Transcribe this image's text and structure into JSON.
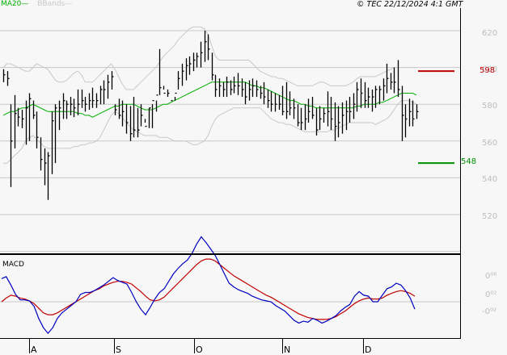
{
  "header": {
    "legend_ma": "MA20",
    "legend_bbands": "BBands",
    "copyright": "© TEC 22/12/2024 4:1 GMT"
  },
  "price_axis": {
    "labels": [
      "620",
      "600",
      "580",
      "560",
      "540",
      "520"
    ]
  },
  "macd_panel": {
    "title": "MACD",
    "axis_labels": [
      "0.06",
      "0.02",
      "-0.02"
    ],
    "axis_labels_display": [
      "0⁰⁶",
      "0⁰²",
      "-0⁰²"
    ]
  },
  "x_axis": {
    "labels": [
      "A",
      "S",
      "O",
      "N",
      "D"
    ]
  },
  "levels": {
    "resistance": {
      "value": "598",
      "color": "#c00000"
    },
    "support": {
      "value": "548",
      "color": "#009000"
    }
  },
  "colors": {
    "background": "#f7f7f7",
    "grid": "#c8c8c8",
    "bars": "#000000",
    "ma20": "#00b000",
    "bbands": "#c8c8c8",
    "macd": "#0000c0",
    "signal": "#c00000"
  },
  "chart_data": [
    {
      "type": "line",
      "title": "Price (OHLC bars) with MA20 and Bollinger Bands",
      "xlabel": "",
      "ylabel": "",
      "ylim": [
        500,
        625
      ],
      "grid": true,
      "legend_position": "top-left",
      "legend": [
        "MA20",
        "BBands"
      ],
      "x_tick_labels": [
        "A",
        "S",
        "O",
        "N",
        "D"
      ],
      "y_tick_labels": [
        620,
        600,
        580,
        560,
        540,
        520
      ],
      "annotations": [
        {
          "label": "598",
          "type": "horizontal-level",
          "value": 598,
          "color": "#c00000"
        },
        {
          "label": "548",
          "type": "horizontal-level",
          "value": 548,
          "color": "#009000"
        }
      ],
      "series": [
        {
          "name": "High",
          "values": [
            599,
            598,
            580,
            585,
            578,
            577,
            582,
            586,
            582,
            576,
            562,
            556,
            554,
            576,
            580,
            582,
            586,
            582,
            584,
            583,
            588,
            588,
            584,
            586,
            589,
            586,
            590,
            593,
            596,
            598,
            580,
            583,
            582,
            580,
            579,
            584,
            578,
            580,
            570,
            567,
            567,
            576,
            610,
            590,
            588,
            580,
            582,
            598,
            602,
            605,
            606,
            608,
            608,
            614,
            620,
            618,
            608,
            596,
            594,
            592,
            595,
            593,
            595,
            597,
            594,
            592,
            593,
            594,
            593,
            590,
            592,
            588,
            587,
            586,
            585,
            590,
            592,
            587,
            583,
            580,
            578,
            580,
            583,
            584,
            578,
            579,
            578,
            587,
            584,
            581,
            579,
            581,
            582,
            584,
            586,
            592,
            594,
            592,
            589,
            588,
            590,
            590,
            594,
            602,
            597,
            600,
            604,
            590,
            580,
            583,
            582,
            580
          ]
        },
        {
          "name": "Low",
          "values": [
            592,
            590,
            535,
            556,
            568,
            567,
            558,
            560,
            572,
            556,
            544,
            536,
            528,
            542,
            548,
            566,
            572,
            572,
            574,
            573,
            574,
            578,
            576,
            577,
            578,
            578,
            580,
            580,
            583,
            588,
            574,
            572,
            568,
            564,
            560,
            562,
            562,
            568,
            572,
            578,
            580,
            582,
            585,
            588,
            584,
            580,
            584,
            588,
            590,
            593,
            596,
            598,
            600,
            600,
            603,
            604,
            593,
            584,
            584,
            584,
            584,
            585,
            586,
            585,
            584,
            580,
            582,
            584,
            584,
            583,
            580,
            578,
            576,
            576,
            577,
            574,
            572,
            574,
            572,
            568,
            566,
            566,
            570,
            572,
            563,
            566,
            570,
            568,
            566,
            560,
            562,
            564,
            566,
            570,
            572,
            576,
            578,
            578,
            578,
            576,
            578,
            580,
            582,
            586,
            588,
            586,
            584,
            560,
            562,
            568,
            568,
            572
          ]
        },
        {
          "name": "Close",
          "values": [
            596,
            594,
            560,
            575,
            573,
            572,
            578,
            583,
            574,
            562,
            550,
            548,
            552,
            571,
            578,
            578,
            582,
            580,
            580,
            578,
            580,
            582,
            580,
            582,
            582,
            582,
            588,
            588,
            592,
            595,
            577,
            574,
            576,
            570,
            564,
            566,
            566,
            574,
            568,
            578,
            582,
            585,
            589,
            586,
            586,
            582,
            586,
            594,
            598,
            601,
            602,
            604,
            606,
            608,
            614,
            610,
            596,
            588,
            590,
            588,
            592,
            588,
            590,
            590,
            588,
            584,
            588,
            590,
            588,
            586,
            584,
            582,
            580,
            580,
            580,
            576,
            576,
            578,
            578,
            570,
            570,
            572,
            576,
            574,
            566,
            572,
            575,
            576,
            572,
            568,
            570,
            574,
            576,
            576,
            580,
            588,
            586,
            582,
            584,
            584,
            588,
            588,
            590,
            594,
            592,
            592,
            588,
            574,
            572,
            576,
            572,
            576
          ]
        },
        {
          "name": "MA20",
          "values": [
            574,
            575,
            576,
            576,
            577,
            578,
            578,
            579,
            580,
            579,
            578,
            577,
            576,
            576,
            576,
            576,
            576,
            576,
            576,
            576,
            575,
            575,
            574,
            574,
            573,
            574,
            575,
            576,
            577,
            578,
            579,
            579,
            580,
            580,
            580,
            580,
            579,
            578,
            577,
            577,
            577,
            578,
            579,
            580,
            580,
            581,
            582,
            583,
            584,
            585,
            586,
            587,
            588,
            589,
            590,
            591,
            592,
            592,
            592,
            592,
            592,
            592,
            592,
            592,
            592,
            592,
            591,
            590,
            590,
            589,
            589,
            588,
            587,
            586,
            585,
            584,
            583,
            582,
            582,
            581,
            580,
            580,
            579,
            579,
            578,
            578,
            578,
            578,
            578,
            578,
            578,
            578,
            578,
            578,
            578,
            579,
            579,
            580,
            580,
            580,
            580,
            581,
            581,
            582,
            583,
            584,
            585,
            586,
            586,
            586,
            586,
            585
          ]
        },
        {
          "name": "BB_Upper",
          "values": [
            600,
            602,
            602,
            601,
            600,
            599,
            598,
            598,
            600,
            602,
            601,
            600,
            599,
            596,
            593,
            592,
            592,
            593,
            595,
            597,
            598,
            596,
            592,
            592,
            592,
            594,
            596,
            598,
            600,
            602,
            599,
            595,
            591,
            588,
            588,
            588,
            590,
            592,
            594,
            596,
            598,
            600,
            603,
            606,
            608,
            610,
            612,
            615,
            617,
            619,
            621,
            622,
            622,
            622,
            621,
            618,
            612,
            606,
            604,
            604,
            604,
            604,
            604,
            604,
            604,
            604,
            604,
            602,
            600,
            598,
            597,
            596,
            595,
            595,
            594,
            594,
            593,
            592,
            591,
            590,
            590,
            590,
            590,
            590,
            591,
            592,
            592,
            591,
            590,
            590,
            590,
            590,
            590,
            591,
            592,
            594,
            595,
            595,
            595,
            595,
            595,
            596,
            597,
            598,
            599,
            600,
            600,
            600,
            600,
            600,
            600,
            600
          ]
        },
        {
          "name": "BB_Lower",
          "values": [
            548,
            548,
            550,
            552,
            554,
            556,
            560,
            562,
            563,
            561,
            559,
            557,
            556,
            556,
            556,
            556,
            556,
            556,
            556,
            557,
            557,
            558,
            558,
            559,
            559,
            560,
            562,
            566,
            570,
            574,
            576,
            575,
            573,
            570,
            568,
            566,
            565,
            564,
            563,
            563,
            563,
            563,
            562,
            562,
            562,
            561,
            560,
            560,
            560,
            560,
            559,
            558,
            558,
            559,
            560,
            563,
            568,
            572,
            574,
            575,
            576,
            577,
            578,
            578,
            578,
            578,
            578,
            578,
            578,
            578,
            576,
            574,
            572,
            571,
            570,
            570,
            569,
            569,
            568,
            567,
            566,
            565,
            565,
            565,
            565,
            565,
            565,
            565,
            566,
            566,
            567,
            568,
            569,
            570,
            570,
            570,
            570,
            570,
            570,
            570,
            569,
            570,
            571,
            572,
            574,
            577,
            580,
            582,
            582,
            582,
            581,
            580
          ]
        }
      ]
    },
    {
      "type": "line",
      "title": "MACD",
      "xlabel": "",
      "ylabel": "",
      "ylim": [
        -0.05,
        0.09
      ],
      "grid": false,
      "x_tick_labels": [
        "A",
        "S",
        "O",
        "N",
        "D"
      ],
      "y_tick_labels": [
        0.06,
        0.02,
        -0.02
      ],
      "series": [
        {
          "name": "MACD",
          "color": "#0000c0",
          "values": [
            0.025,
            0.027,
            0.018,
            0.008,
            0.002,
            0.002,
            0.001,
            -0.005,
            -0.018,
            -0.028,
            -0.034,
            -0.028,
            -0.018,
            -0.012,
            -0.008,
            -0.004,
            0.0,
            0.008,
            0.01,
            0.01,
            0.012,
            0.015,
            0.018,
            0.022,
            0.026,
            0.023,
            0.021,
            0.019,
            0.01,
            0.0,
            -0.008,
            -0.014,
            -0.006,
            0.003,
            0.01,
            0.014,
            0.022,
            0.03,
            0.036,
            0.041,
            0.045,
            0.052,
            0.062,
            0.07,
            0.064,
            0.057,
            0.05,
            0.04,
            0.03,
            0.02,
            0.016,
            0.013,
            0.011,
            0.009,
            0.006,
            0.004,
            0.002,
            0.001,
            0.0,
            -0.004,
            -0.007,
            -0.01,
            -0.015,
            -0.02,
            -0.023,
            -0.021,
            -0.022,
            -0.018,
            -0.02,
            -0.023,
            -0.021,
            -0.018,
            -0.015,
            -0.01,
            -0.006,
            -0.003,
            0.006,
            0.011,
            0.007,
            0.006,
            0.0,
            0.0,
            0.007,
            0.014,
            0.016,
            0.02,
            0.018,
            0.012,
            0.004,
            -0.008
          ]
        },
        {
          "name": "Signal",
          "color": "#c00000",
          "values": [
            0.0,
            0.004,
            0.007,
            0.006,
            0.004,
            0.003,
            0.001,
            -0.002,
            -0.007,
            -0.012,
            -0.014,
            -0.014,
            -0.012,
            -0.009,
            -0.006,
            -0.003,
            0.0,
            0.003,
            0.006,
            0.009,
            0.012,
            0.014,
            0.017,
            0.019,
            0.021,
            0.022,
            0.022,
            0.021,
            0.019,
            0.015,
            0.011,
            0.006,
            0.002,
            0.001,
            0.002,
            0.005,
            0.01,
            0.015,
            0.02,
            0.025,
            0.03,
            0.035,
            0.04,
            0.044,
            0.046,
            0.046,
            0.044,
            0.04,
            0.036,
            0.032,
            0.028,
            0.025,
            0.022,
            0.019,
            0.016,
            0.013,
            0.01,
            0.007,
            0.005,
            0.002,
            -0.001,
            -0.004,
            -0.007,
            -0.01,
            -0.013,
            -0.015,
            -0.017,
            -0.018,
            -0.019,
            -0.019,
            -0.019,
            -0.018,
            -0.016,
            -0.013,
            -0.01,
            -0.006,
            -0.002,
            0.001,
            0.003,
            0.004,
            0.003,
            0.003,
            0.004,
            0.007,
            0.009,
            0.011,
            0.012,
            0.011,
            0.009,
            0.006
          ]
        }
      ]
    }
  ]
}
